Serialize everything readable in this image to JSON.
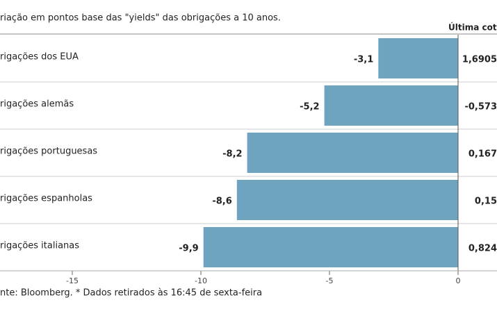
{
  "chart_data": {
    "type": "hbar",
    "title": "riação em pontos base das \"yields\" das obrigações a 10 anos.",
    "categories": [
      "rigações dos EUA",
      "rigações alemãs",
      "rigações portuguesas",
      "rigações espanholas",
      "rigações italianas"
    ],
    "values": [
      -3.1,
      -5.2,
      -8.2,
      -8.6,
      -9.9
    ],
    "value_labels": [
      "-3,1",
      "-5,2",
      "-8,2",
      "-8,6",
      "-9,9"
    ],
    "color": "#6fa4c0",
    "xlim": [
      -15,
      0
    ],
    "xticks": [
      -15,
      -10,
      -5,
      0
    ],
    "last_quote": {
      "title": "Última cotaç",
      "values": [
        "1,6905",
        "-0,573",
        "0,167",
        "0,15",
        "0,824"
      ]
    },
    "source": "nte: Bloomberg.  * Dados retirados às 16:45 de sexta-feira"
  }
}
